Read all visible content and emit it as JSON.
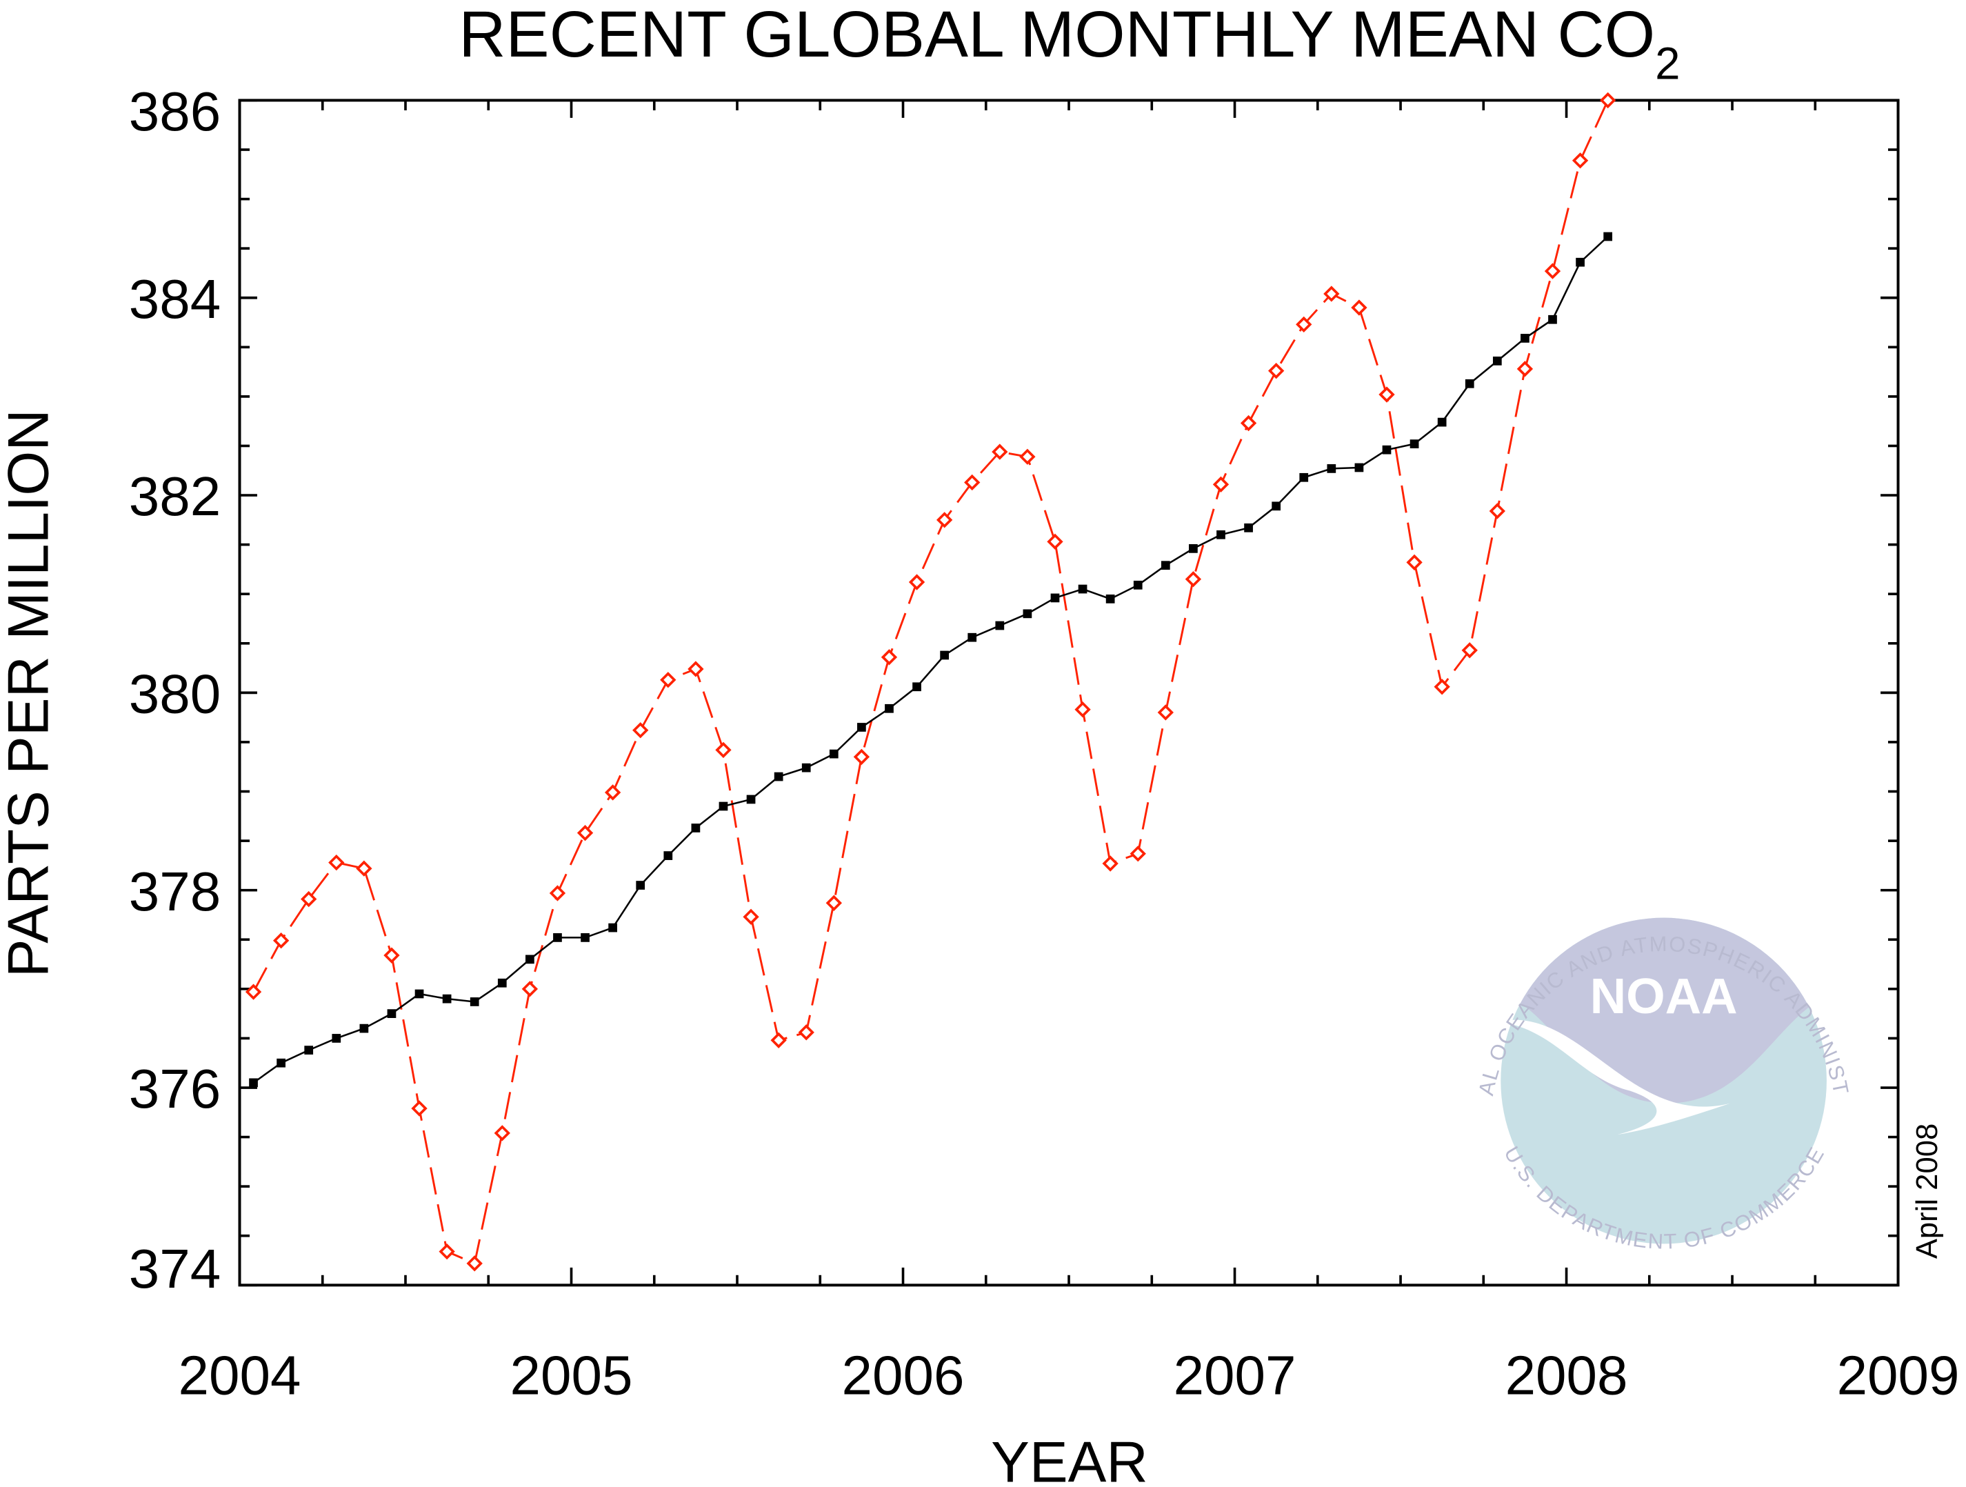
{
  "chart_data": {
    "type": "line",
    "title": "RECENT GLOBAL MONTHLY MEAN CO",
    "title_subscript": "2",
    "xlabel": "YEAR",
    "ylabel": "PARTS PER MILLION",
    "annotation": "April 2008",
    "xlim": [
      2004,
      2009
    ],
    "ylim": [
      374,
      386
    ],
    "x_ticks": [
      "2004",
      "2005",
      "2006",
      "2007",
      "2008",
      "2009"
    ],
    "y_ticks": [
      "374",
      "376",
      "378",
      "380",
      "382",
      "384",
      "386"
    ],
    "grid": false,
    "x_start": "2004-01",
    "series": [
      {
        "style": "red dashed line with open diamond markers",
        "color": "#ff2200",
        "values": [
          376.97,
          377.49,
          377.91,
          378.28,
          378.22,
          377.34,
          375.79,
          374.34,
          374.22,
          375.54,
          377.0,
          377.97,
          378.58,
          378.99,
          379.62,
          380.13,
          380.24,
          379.42,
          377.73,
          376.48,
          376.56,
          377.87,
          379.35,
          380.36,
          381.12,
          381.75,
          382.13,
          382.44,
          382.39,
          381.53,
          379.83,
          378.27,
          378.37,
          379.8,
          381.15,
          382.11,
          382.73,
          383.26,
          383.73,
          384.04,
          383.9,
          383.02,
          381.32,
          380.06,
          380.43,
          381.84,
          383.28,
          384.27,
          385.39,
          386.0
        ]
      },
      {
        "style": "black solid line with filled square markers",
        "color": "#000000",
        "values": [
          376.05,
          376.25,
          376.38,
          376.5,
          376.6,
          376.75,
          376.95,
          376.9,
          376.87,
          377.06,
          377.3,
          377.52,
          377.52,
          377.62,
          378.05,
          378.35,
          378.63,
          378.85,
          378.92,
          379.15,
          379.24,
          379.38,
          379.65,
          379.84,
          380.06,
          380.38,
          380.56,
          380.68,
          380.8,
          380.96,
          381.05,
          380.95,
          381.09,
          381.29,
          381.46,
          381.6,
          381.67,
          381.89,
          382.18,
          382.27,
          382.28,
          382.46,
          382.52,
          382.74,
          383.13,
          383.36,
          383.59,
          383.78,
          384.36,
          384.62
        ]
      }
    ]
  },
  "logo": {
    "name": "NOAA",
    "top_text": "NATIONAL OCEANIC AND ATMOSPHERIC ADMINISTRATION",
    "bottom_text": "U.S. DEPARTMENT OF COMMERCE",
    "colors": {
      "sky": "#c5c7de",
      "sea": "#c8e0e6",
      "text": "#b8bad0"
    }
  }
}
